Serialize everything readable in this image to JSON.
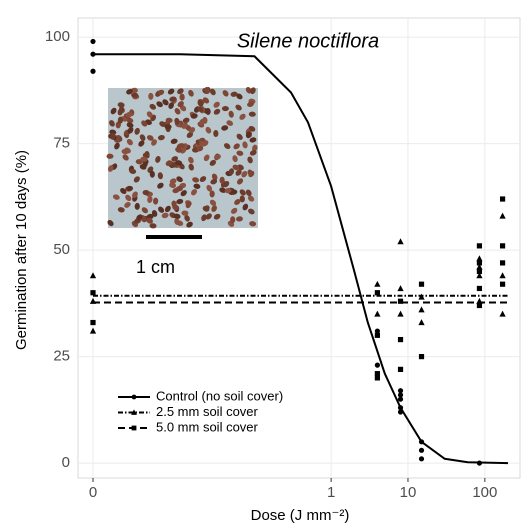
{
  "chart_data": {
    "type": "scatter",
    "title": "Silene noctiflora",
    "xlabel": "Dose (J mm⁻²)",
    "ylabel": "Germination after 10 days (%)",
    "scale_label": "1 cm",
    "xscale": "pseudo-log",
    "xlim": [
      0,
      200
    ],
    "ylim": [
      -3.5,
      104.5
    ],
    "xticks": [
      0,
      1,
      10,
      100
    ],
    "yticks": [
      0,
      25,
      50,
      75,
      100
    ],
    "grid": true,
    "legend": "bottom-left",
    "series": [
      {
        "name": "Control (no soil cover)",
        "color": "#000000",
        "marker": "circle",
        "linestyle": "solid",
        "x": [
          0,
          0,
          0,
          4,
          4,
          8,
          8,
          8,
          8,
          8,
          15,
          15,
          15,
          85
        ],
        "values": [
          99,
          96,
          92,
          31,
          23,
          17,
          16,
          15,
          13,
          12,
          5,
          3,
          1,
          0
        ],
        "fit_x": [
          0,
          0.01,
          0.1,
          0.3,
          0.5,
          1,
          2,
          3,
          5,
          8,
          15,
          30,
          60,
          200
        ],
        "fit_values": [
          96,
          96,
          95.5,
          87,
          80,
          65,
          45,
          33,
          21,
          13,
          5,
          1,
          0.2,
          0
        ]
      },
      {
        "name": "2.5 mm soil cover",
        "color": "#000000",
        "marker": "triangle",
        "linestyle": "dotdash",
        "x": [
          0,
          0,
          0,
          4,
          4,
          8,
          8,
          8,
          15,
          15,
          15,
          85,
          85,
          85,
          85,
          170,
          170,
          170
        ],
        "values": [
          44,
          38,
          31,
          42,
          35,
          52,
          41,
          35,
          39,
          36,
          33,
          48,
          46,
          44,
          38,
          58,
          44,
          35
        ],
        "fit_x": [
          0,
          200
        ],
        "fit_values": [
          39.3,
          39.3
        ]
      },
      {
        "name": "5.0 mm soil cover",
        "color": "#000000",
        "marker": "square",
        "linestyle": "dashed",
        "x": [
          0,
          0,
          4,
          4,
          4,
          4,
          8,
          8,
          8,
          15,
          15,
          85,
          85,
          85,
          85,
          85,
          170,
          170,
          170,
          170
        ],
        "values": [
          40,
          33,
          40,
          30,
          21,
          20,
          38,
          29,
          22,
          42,
          25,
          51,
          47,
          45,
          41,
          37,
          62,
          51,
          47,
          42
        ],
        "fit_x": [
          0,
          200
        ],
        "fit_values": [
          37.7,
          37.7
        ]
      }
    ]
  }
}
